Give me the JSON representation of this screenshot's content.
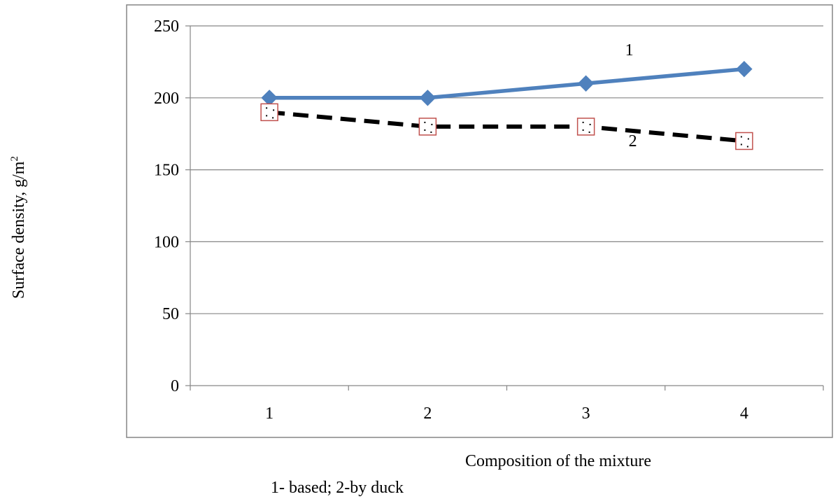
{
  "chart_data": {
    "type": "line",
    "categories": [
      "1",
      "2",
      "3",
      "4"
    ],
    "series": [
      {
        "label": "1",
        "values": [
          200,
          200,
          210,
          220
        ],
        "color": "#4f81bd",
        "line_style": "solid",
        "marker": "diamond"
      },
      {
        "label": "2",
        "values": [
          190,
          180,
          180,
          170
        ],
        "color": "#000000",
        "marker_color": "#c0504d",
        "line_style": "dashed",
        "marker": "square"
      }
    ],
    "xlabel": "Composition of the mixture",
    "ylabel": "Surface density, g/m",
    "ylabel_superscript": "2",
    "ylim": [
      0,
      250
    ],
    "yticks": [
      0,
      50,
      100,
      150,
      200,
      250
    ],
    "grid": true,
    "legend_caption": "1- based; 2-by duck"
  }
}
